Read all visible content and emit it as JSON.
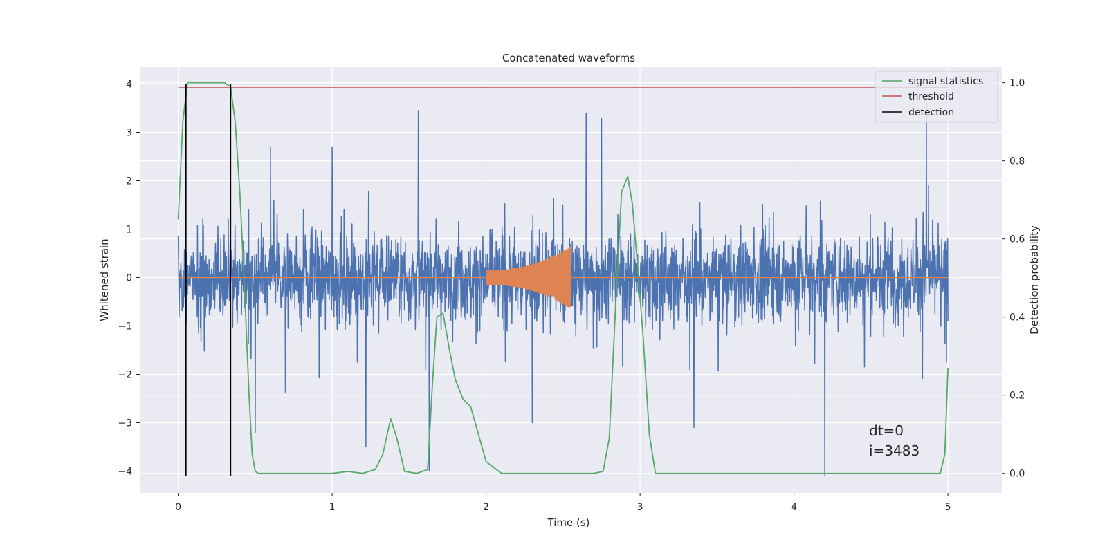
{
  "chart_data": {
    "type": "line",
    "title": "Concatenated waveforms",
    "xlabel": "Time (s)",
    "ylabel_left": "Whitened strain",
    "ylabel_right": "Detection probability",
    "xlim": [
      -0.25,
      5.35
    ],
    "ylim_left": [
      -4.45,
      4.35
    ],
    "ylim_right": [
      -0.05,
      1.04
    ],
    "xticks": [
      0,
      1,
      2,
      3,
      4,
      5
    ],
    "yticks_left": [
      -4,
      -3,
      -2,
      -1,
      0,
      1,
      2,
      3,
      4
    ],
    "yticks_right": [
      0.0,
      0.2,
      0.4,
      0.6,
      0.8,
      1.0
    ],
    "grid": true,
    "legend_placement": "top-right",
    "colors": {
      "strain": "#4c72b0",
      "injected_signal": "#dd8452",
      "signal_statistics": "#55a868",
      "threshold": "#c44e52",
      "detection": "#000000",
      "axes_background": "#eaeaf2",
      "grid": "#ffffff"
    },
    "series": [
      {
        "name": "",
        "axis": "left",
        "description": "whitened strain noise",
        "x_range": [
          0,
          5
        ],
        "typical_envelope": [
          -1.3,
          1.3
        ],
        "peak_values": [
          [
            0.6,
            2.7
          ],
          [
            1.0,
            2.7
          ],
          [
            1.56,
            3.45
          ],
          [
            2.65,
            3.4
          ],
          [
            2.75,
            3.3
          ],
          [
            4.86,
            3.6
          ],
          [
            1.63,
            -4.0
          ],
          [
            4.2,
            -4.1
          ],
          [
            3.35,
            -3.1
          ],
          [
            0.5,
            -3.2
          ],
          [
            1.22,
            -3.5
          ],
          [
            2.3,
            -3.0
          ]
        ]
      },
      {
        "name": "",
        "axis": "left",
        "description": "injected chirp",
        "x_range": [
          2.0,
          2.55
        ],
        "amplitude_start": 0.15,
        "amplitude_end": 0.65,
        "baseline": 0.0
      },
      {
        "name": "signal statistics",
        "axis": "right",
        "x": [
          0.0,
          0.03,
          0.06,
          0.1,
          0.2,
          0.3,
          0.34,
          0.37,
          0.4,
          0.43,
          0.46,
          0.48,
          0.5,
          0.52,
          0.6,
          0.9,
          1.0,
          1.1,
          1.2,
          1.28,
          1.33,
          1.38,
          1.42,
          1.47,
          1.55,
          1.62,
          1.65,
          1.68,
          1.72,
          1.76,
          1.8,
          1.85,
          1.9,
          1.95,
          2.0,
          2.1,
          2.5,
          2.7,
          2.76,
          2.8,
          2.84,
          2.88,
          2.92,
          2.95,
          2.98,
          3.02,
          3.06,
          3.1,
          3.2,
          3.5,
          4.0,
          4.5,
          4.95,
          4.98,
          5.0
        ],
        "y": [
          0.65,
          0.9,
          1.0,
          1.0,
          1.0,
          1.0,
          0.99,
          0.9,
          0.72,
          0.48,
          0.2,
          0.05,
          0.005,
          0.0,
          0.0,
          0.0,
          0.0,
          0.005,
          0.0,
          0.01,
          0.05,
          0.14,
          0.09,
          0.005,
          0.0,
          0.01,
          0.22,
          0.4,
          0.41,
          0.32,
          0.24,
          0.19,
          0.17,
          0.1,
          0.03,
          0.0,
          0.0,
          0.0,
          0.005,
          0.09,
          0.42,
          0.72,
          0.76,
          0.69,
          0.55,
          0.35,
          0.1,
          0.0,
          0.0,
          0.0,
          0.0,
          0.0,
          0.0,
          0.05,
          0.27
        ]
      },
      {
        "name": "threshold",
        "axis": "right",
        "x": [
          0,
          5
        ],
        "y": [
          0.987,
          0.987
        ]
      },
      {
        "name": "detection",
        "axis": "left",
        "vertical_lines_x": [
          0.05,
          0.34
        ],
        "y_span": [
          -4.1,
          4.0
        ]
      }
    ],
    "annotations": [
      "dt=0",
      "i=3483"
    ]
  }
}
